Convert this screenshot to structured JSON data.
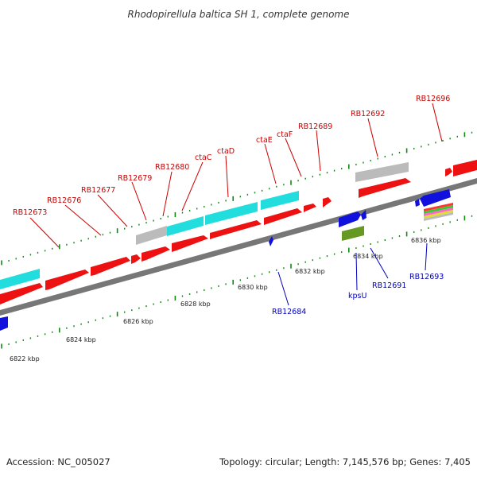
{
  "title": "Rhodopirellula baltica SH 1, complete genome",
  "footer": {
    "accession": "Accession: NC_005027",
    "summary": "Topology: circular; Length: 7,145,576 bp; Genes: 7,405"
  },
  "colors": {
    "forward_gene": "#ee1111",
    "reverse_gene": "#1111dd",
    "cds_cyan": "#22dddd",
    "pseudo_gray": "#bbbbbb",
    "olive": "#669922",
    "tick_green": "#118811",
    "label_red": "#cc0000",
    "label_blue": "#0000bb",
    "backbone": "#777777"
  },
  "scale_labels": [
    "6822 kbp",
    "6824 kbp",
    "6826 kbp",
    "6828 kbp",
    "6830 kbp",
    "6832 kbp",
    "6834 kbp",
    "6836 kbp"
  ],
  "top_labels": [
    "RB12673",
    "RB12676",
    "RB12677",
    "RB12679",
    "RB12680",
    "ctaC",
    "ctaD",
    "ctaE",
    "ctaF",
    "RB12689",
    "RB12692",
    "RB12696"
  ],
  "bottom_labels": [
    "RB12684",
    "kpsU",
    "RB12691",
    "RB12693"
  ]
}
